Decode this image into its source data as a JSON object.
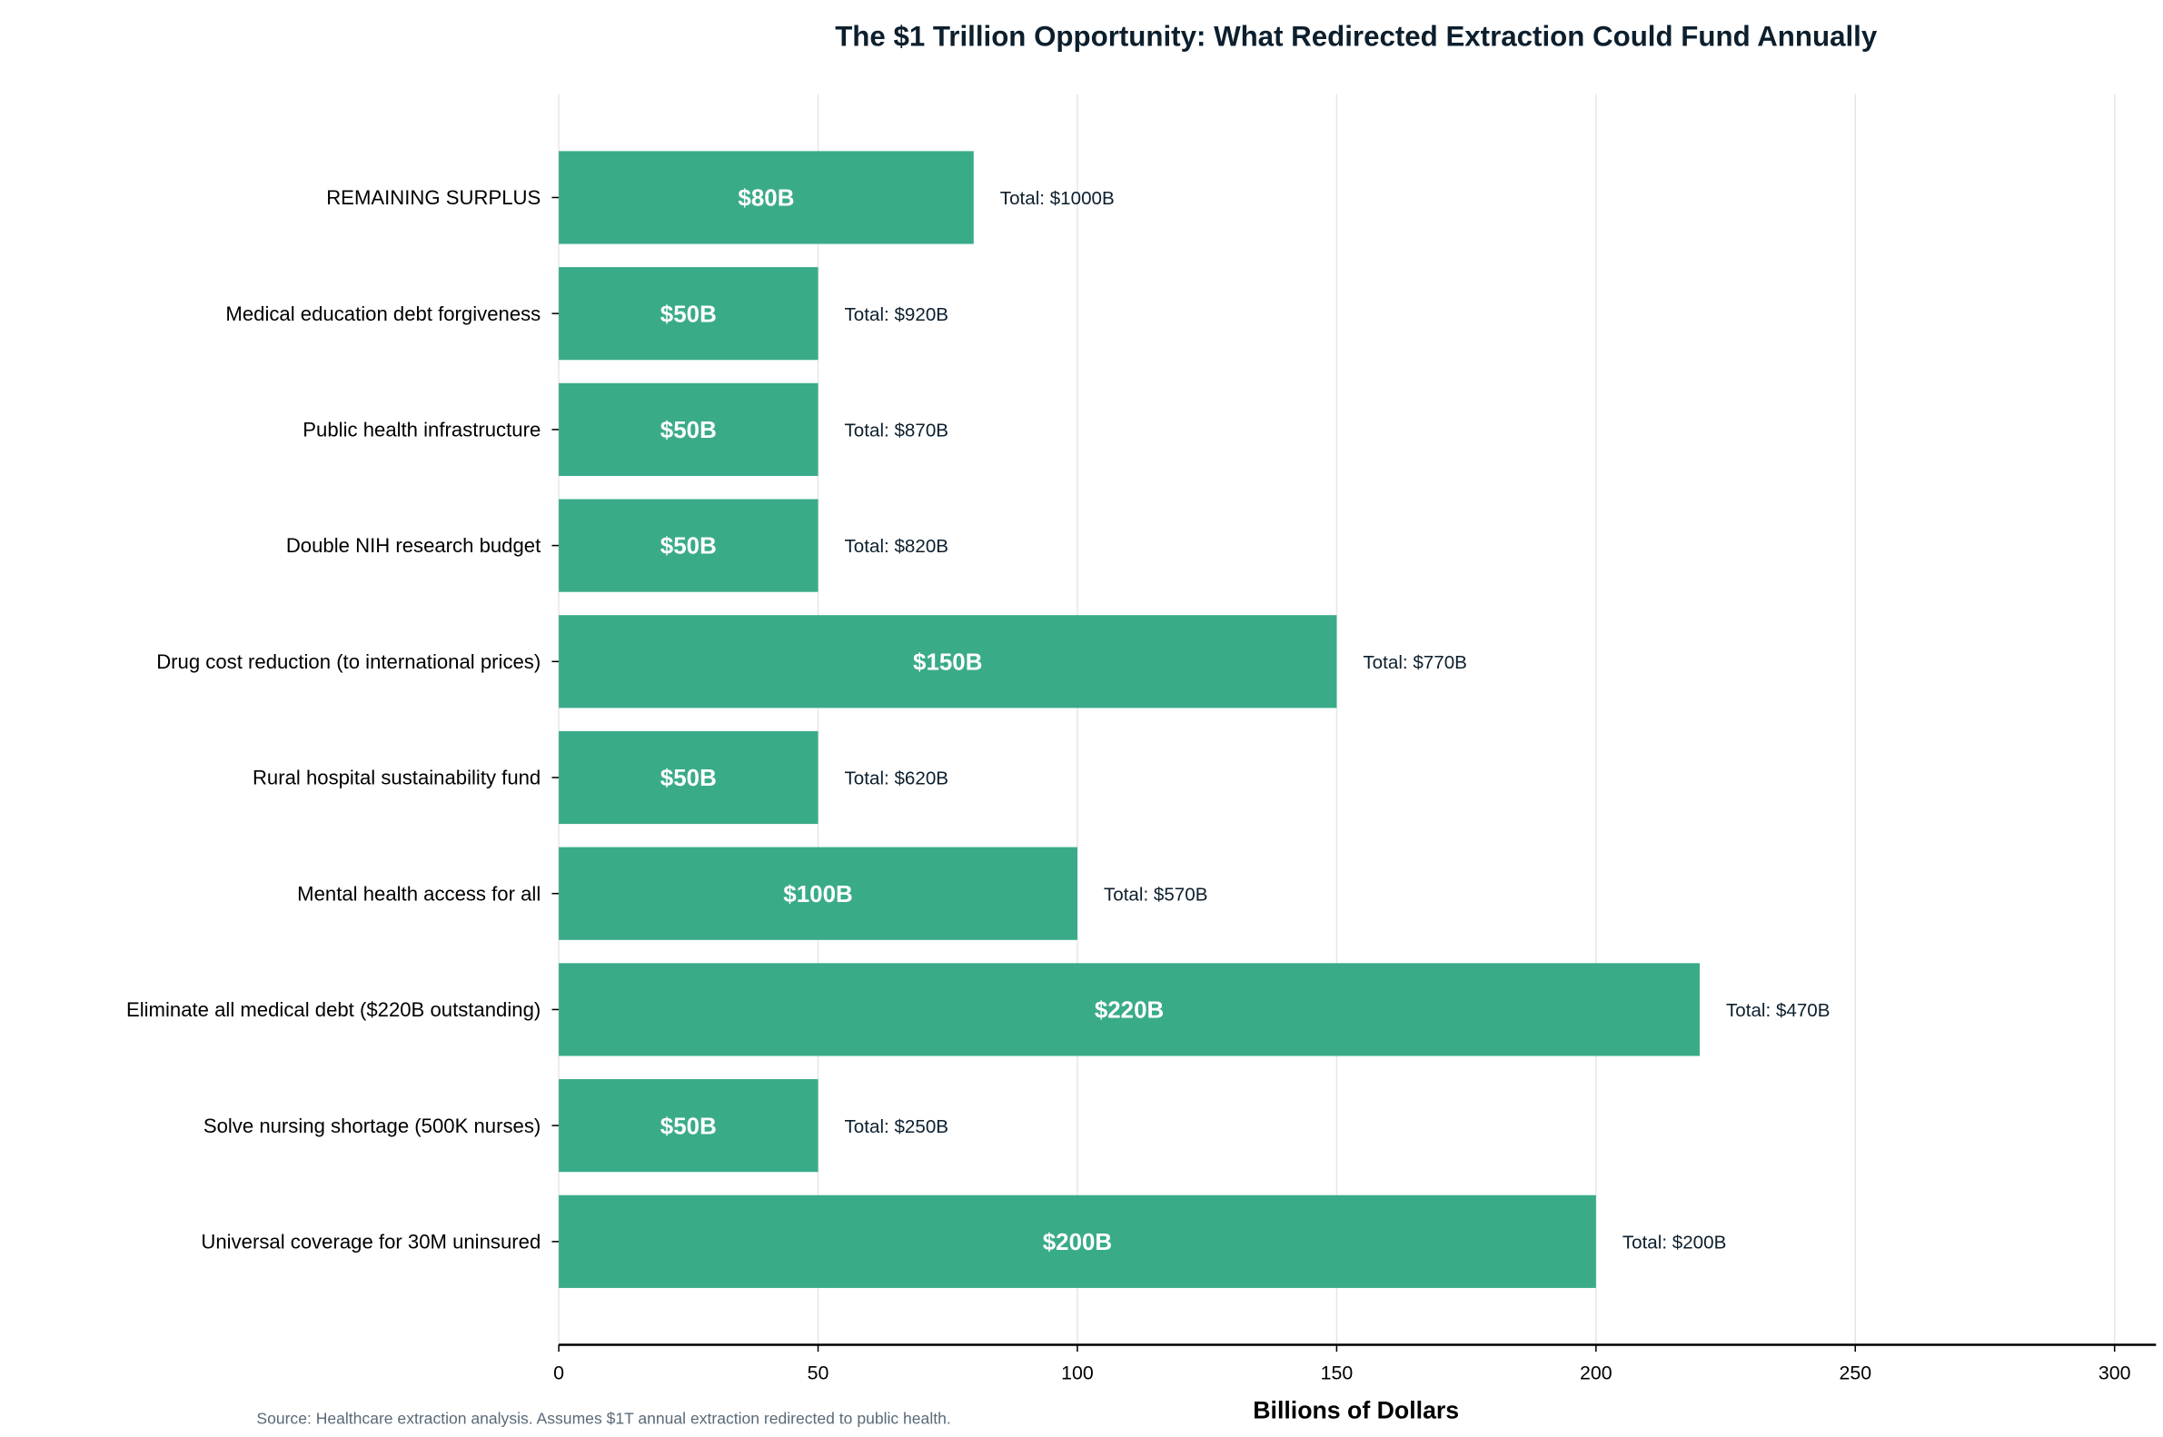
{
  "chart_data": {
    "type": "bar",
    "orientation": "horizontal",
    "title": "The $1 Trillion Opportunity: What Redirected Extraction Could Fund Annually",
    "xlabel": "Billions of Dollars",
    "ylabel": "",
    "xlim": [
      0,
      308
    ],
    "xticks": [
      0,
      50,
      100,
      150,
      200,
      250,
      300
    ],
    "grid": "vertical",
    "categories": [
      "Universal coverage for 30M uninsured",
      "Solve nursing shortage (500K nurses)",
      "Eliminate all medical debt ($220B outstanding)",
      "Mental health access for all",
      "Rural hospital sustainability fund",
      "Drug cost reduction (to international prices)",
      "Double NIH research budget",
      "Public health infrastructure",
      "Medical education debt forgiveness",
      "REMAINING SURPLUS"
    ],
    "values": [
      200,
      50,
      220,
      100,
      50,
      150,
      50,
      50,
      50,
      80
    ],
    "value_labels": [
      "$200B",
      "$50B",
      "$220B",
      "$100B",
      "$50B",
      "$150B",
      "$50B",
      "$50B",
      "$50B",
      "$80B"
    ],
    "total_labels": [
      "Total: $200B",
      "Total: $250B",
      "Total: $470B",
      "Total: $570B",
      "Total: $620B",
      "Total: $770B",
      "Total: $820B",
      "Total: $870B",
      "Total: $920B",
      "Total: $1000B"
    ],
    "footnote": "Source: Healthcare extraction analysis. Assumes $1T annual extraction redirected to public health.",
    "colors": {
      "bar": "#3aab88",
      "title": "#0d1f2d",
      "footnote": "#5a6a78",
      "grid": "#e6e6e6"
    }
  }
}
